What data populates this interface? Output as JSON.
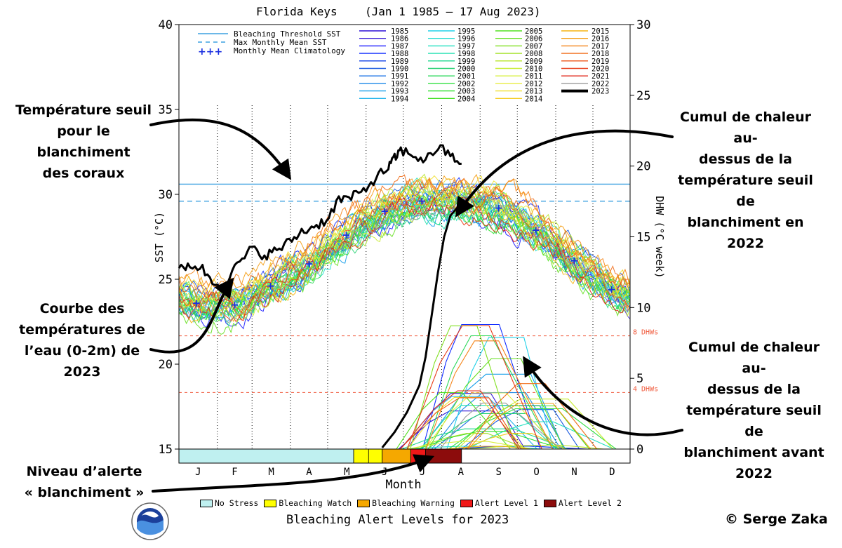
{
  "title": "Florida Keys",
  "date_range": "(Jan 1 1985 – 17 Aug 2023)",
  "colors": {
    "threshold": "#3ba0e0",
    "max_monthly_mean": "#3ba0e0",
    "climatology": "#1a2fe0",
    "year_2023": "#000000",
    "dhw_ref": "#f05a3c",
    "alert_no_stress": "#bff0f0",
    "alert_watch": "#ffff00",
    "alert_warning": "#f5a800",
    "alert_level1": "#f01818",
    "alert_level2": "#8c0c0c"
  },
  "annotations": {
    "threshold": [
      "Température seuil",
      "pour le blanchiment",
      "des coraux"
    ],
    "dhw_2022": [
      "Cumul de chaleur au-",
      "dessus de la",
      "température seuil de",
      "blanchiment en 2022"
    ],
    "curve_2023": [
      "Courbe des",
      "températures de",
      "l’eau (0-2m) de 2023"
    ],
    "dhw_before": [
      "Cumul de chaleur au-",
      "dessus de la",
      "température seuil de",
      "blanchiment avant",
      "2022"
    ],
    "alert": [
      "Niveau d’alerte",
      "« blanchiment »"
    ]
  },
  "copyright": "© Serge Zaka",
  "bottom_title": "Bleaching Alert Levels for 2023",
  "alert_legend": [
    {
      "label": "No Stress",
      "color": "#bff0f0"
    },
    {
      "label": "Bleaching Watch",
      "color": "#ffff00"
    },
    {
      "label": "Bleaching Warning",
      "color": "#f5a800"
    },
    {
      "label": "Alert Level 1",
      "color": "#f01818"
    },
    {
      "label": "Alert Level 2",
      "color": "#8c0c0c"
    }
  ],
  "chart_data": {
    "type": "line",
    "title": "Florida Keys",
    "xlabel": "Month",
    "ylabel": "SST (°C)",
    "y2label": "DHW (°C week)",
    "x_ticks": [
      "J",
      "F",
      "M",
      "A",
      "M",
      "J",
      "J",
      "A",
      "S",
      "O",
      "N",
      "D"
    ],
    "ylim": [
      15,
      40
    ],
    "y_ticks": [
      15,
      20,
      25,
      30,
      35,
      40
    ],
    "y2lim": [
      0,
      30
    ],
    "y2_ticks": [
      0,
      5,
      10,
      15,
      20,
      25,
      30
    ],
    "reference_lines": [
      {
        "name": "Bleaching Threshold SST",
        "value": 30.6,
        "style": "solid"
      },
      {
        "name": "Max Monthly Mean SST",
        "value": 29.6,
        "style": "dashed"
      },
      {
        "name": "8 DHWs",
        "axis": "y2",
        "value": 8,
        "style": "dashed",
        "label": "8 DHWs"
      },
      {
        "name": "4 DHWs",
        "axis": "y2",
        "value": 4,
        "style": "dashed",
        "label": "4 DHWs"
      }
    ],
    "legend_refs": [
      "Bleaching Threshold SST",
      "Max Monthly Mean SST",
      "Monthly Mean Climatology"
    ],
    "legend_years": [
      "1985",
      "1986",
      "1987",
      "1988",
      "1989",
      "1990",
      "1991",
      "1992",
      "1993",
      "1994",
      "1995",
      "1996",
      "1997",
      "1998",
      "1999",
      "2000",
      "2001",
      "2002",
      "2003",
      "2004",
      "2005",
      "2006",
      "2007",
      "2008",
      "2009",
      "2010",
      "2011",
      "2012",
      "2013",
      "2014",
      "2015",
      "2016",
      "2017",
      "2018",
      "2019",
      "2020",
      "2021",
      "2022",
      "2023"
    ],
    "climatology": {
      "name": "Monthly Mean Climatology",
      "day": [
        15,
        46,
        75,
        106,
        136,
        167,
        197,
        228,
        259,
        289,
        320,
        350
      ],
      "sst": [
        23.6,
        23.5,
        24.6,
        25.9,
        27.6,
        29.0,
        29.6,
        29.6,
        29.2,
        27.9,
        26.1,
        24.4
      ]
    },
    "sst_2023": {
      "name": "2023",
      "day": [
        1,
        10,
        20,
        30,
        40,
        50,
        60,
        70,
        80,
        90,
        100,
        110,
        120,
        130,
        140,
        150,
        160,
        170,
        175,
        180,
        190,
        200,
        210,
        220,
        229
      ],
      "sst": [
        25.5,
        25.9,
        25.6,
        24.7,
        25.0,
        26.0,
        26.8,
        26.4,
        26.7,
        27.2,
        27.8,
        28.1,
        28.5,
        29.7,
        29.8,
        30.2,
        31.0,
        31.6,
        32.1,
        32.6,
        32.3,
        32.0,
        32.8,
        32.3,
        31.8
      ]
    },
    "dhw_2023": {
      "name": "2023 DHW",
      "day": [
        165,
        175,
        185,
        195,
        200,
        205,
        210,
        215,
        220,
        225,
        229
      ],
      "dhw": [
        0.1,
        1.2,
        2.6,
        4.5,
        6.5,
        9.5,
        12.5,
        15.0,
        16.5,
        17.0,
        17.3
      ]
    },
    "dhw_max_previous_years": 9.0,
    "alert_levels_2023": [
      {
        "level": "No Stress",
        "from_day": 1,
        "to_day": 142
      },
      {
        "level": "Bleaching Watch",
        "from_day": 142,
        "to_day": 165
      },
      {
        "level": "Bleaching Warning",
        "from_day": 165,
        "to_day": 188
      },
      {
        "level": "Alert Level 1",
        "from_day": 188,
        "to_day": 200
      },
      {
        "level": "Alert Level 2",
        "from_day": 200,
        "to_day": 229
      }
    ]
  }
}
